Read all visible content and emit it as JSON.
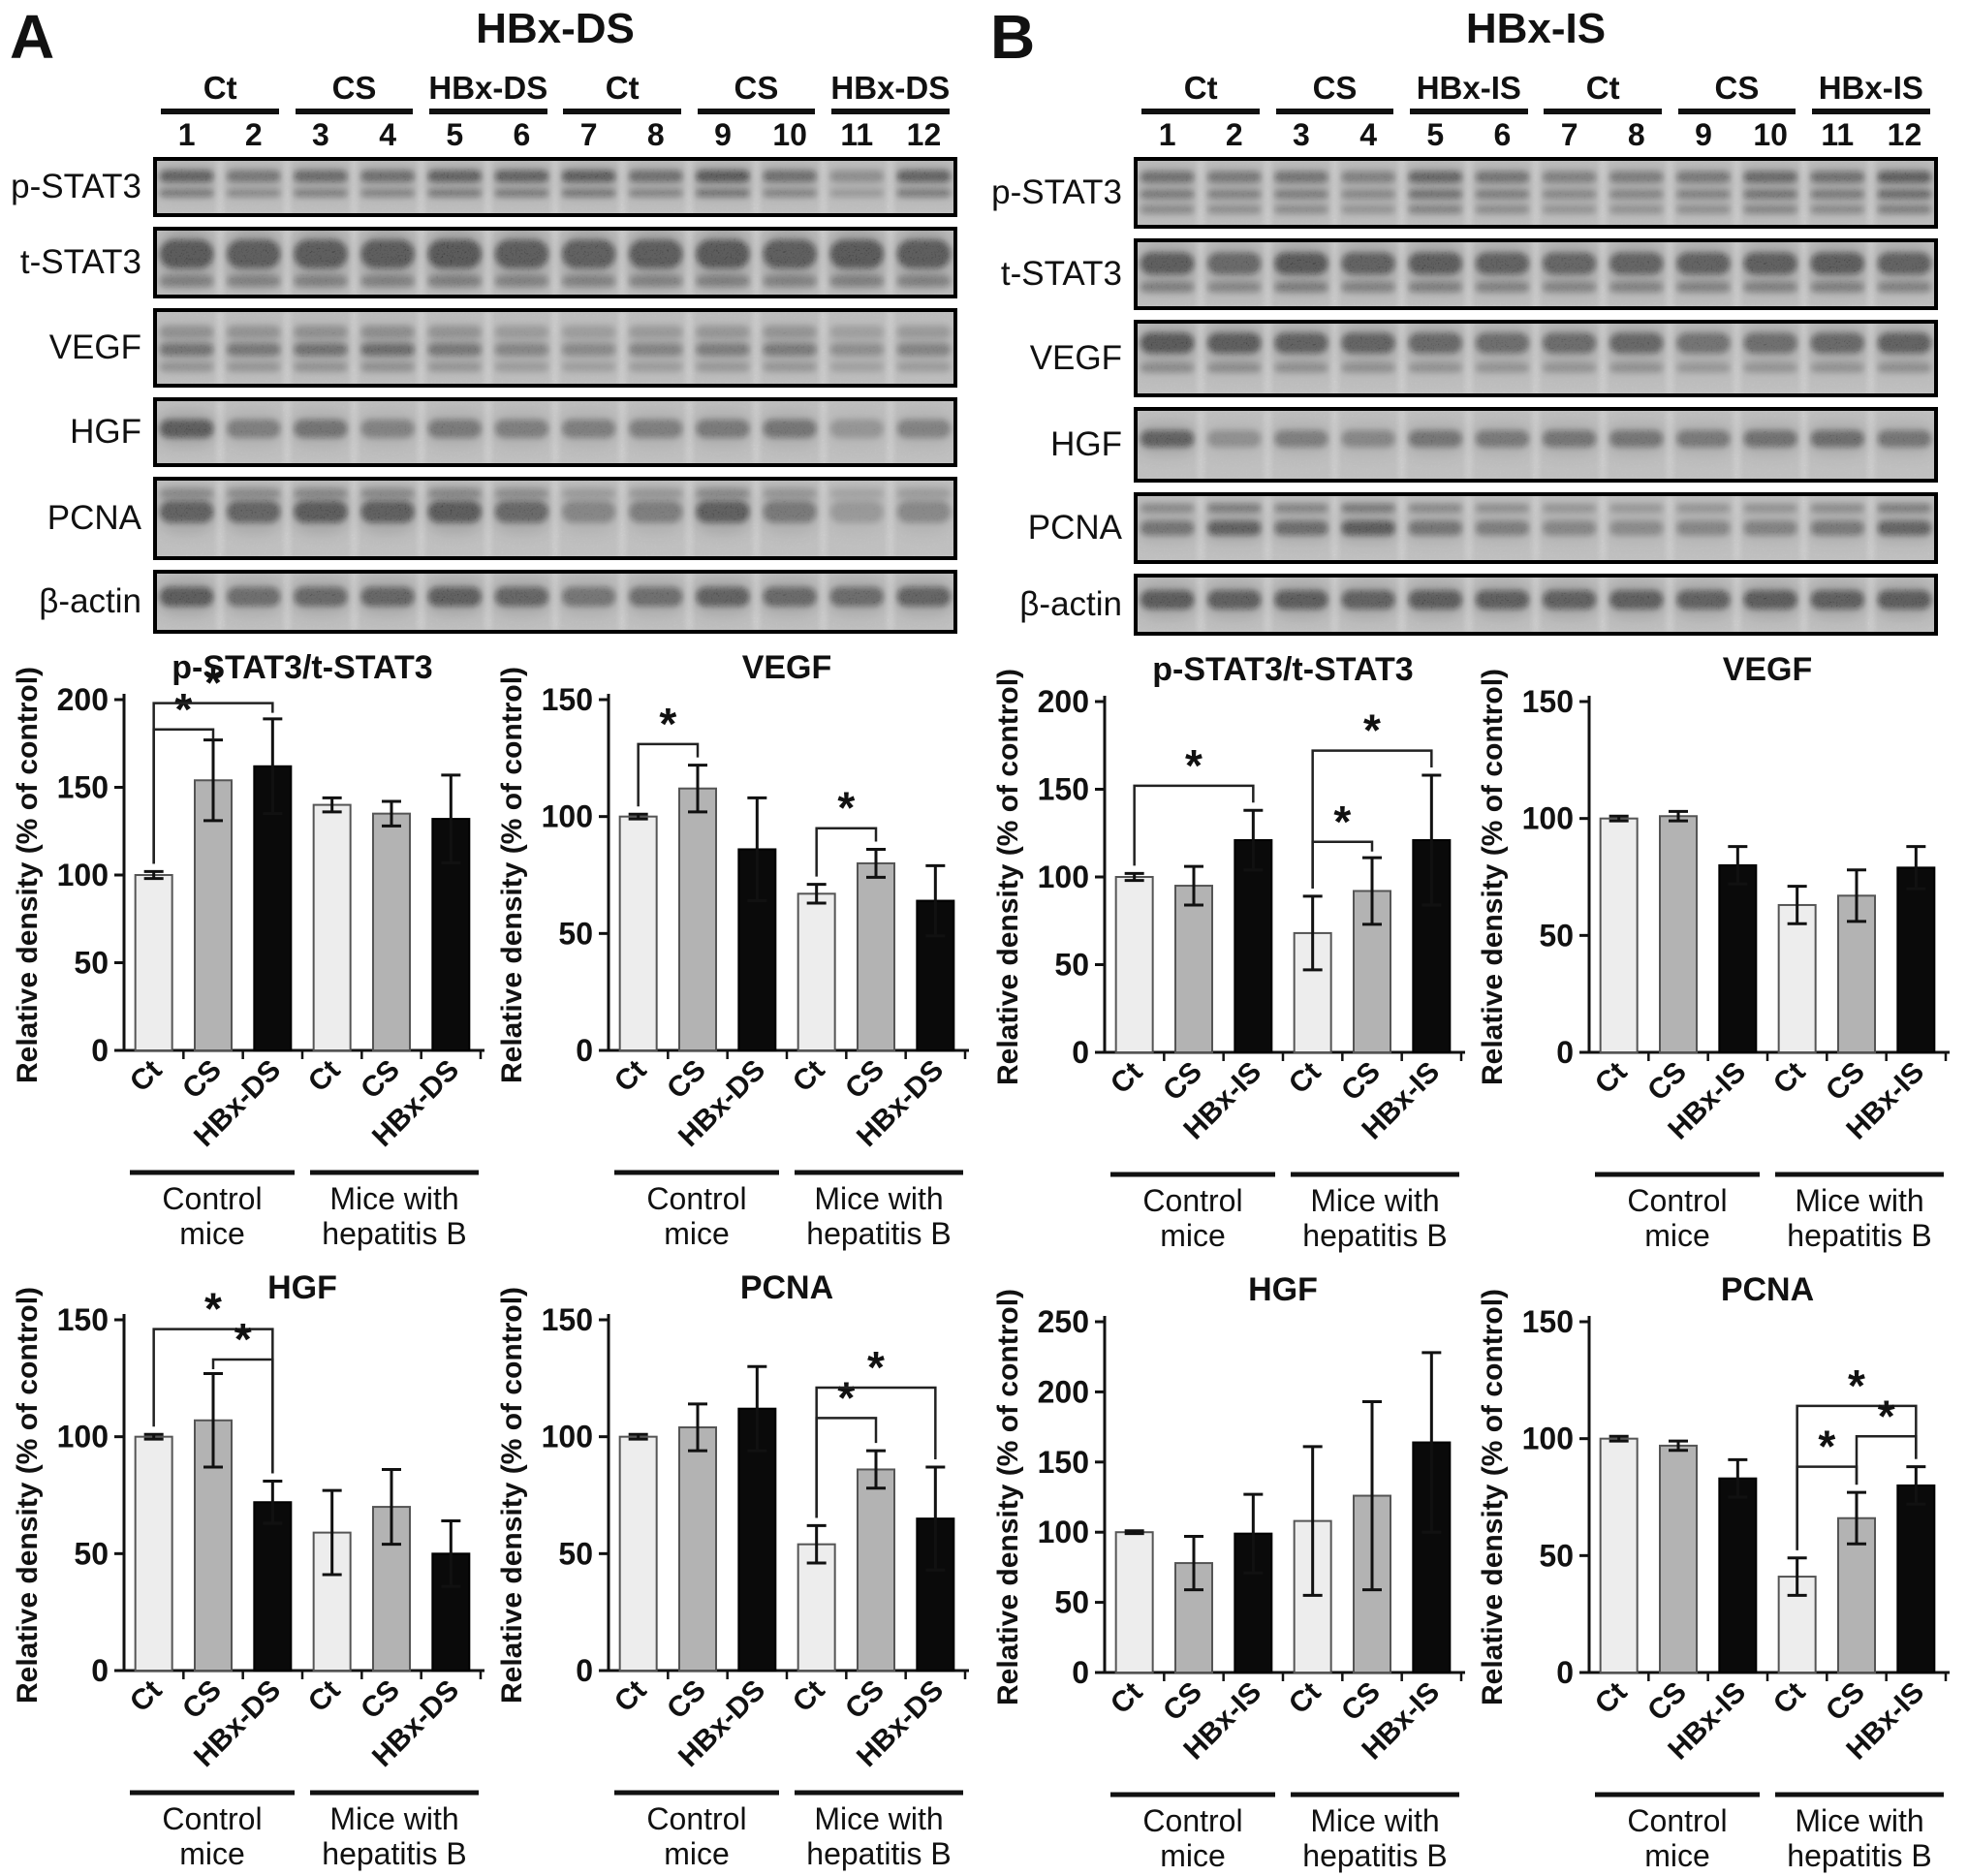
{
  "figure": {
    "panels": [
      {
        "key": "A",
        "panel_letter": "A",
        "blot": {
          "title": "HBx-DS",
          "group_labels": [
            "Ct",
            "CS",
            "HBx-DS",
            "Ct",
            "CS",
            "HBx-DS"
          ],
          "lane_numbers": [
            "1",
            "2",
            "3",
            "4",
            "5",
            "6",
            "7",
            "8",
            "9",
            "10",
            "11",
            "12"
          ],
          "rows": [
            {
              "label": "p-STAT3",
              "height": 62,
              "bands": [
                {
                  "y": 0.32,
                  "h": 0.2,
                  "k": 1.0
                },
                {
                  "y": 0.6,
                  "h": 0.13,
                  "k": 0.65
                }
              ],
              "intensities": [
                0.8,
                0.55,
                0.7,
                0.65,
                0.8,
                0.8,
                0.85,
                0.65,
                0.9,
                0.65,
                0.3,
                0.8
              ]
            },
            {
              "label": "t-STAT3",
              "height": 74,
              "bands": [
                {
                  "y": 0.38,
                  "h": 0.4,
                  "k": 1.0
                },
                {
                  "y": 0.76,
                  "h": 0.16,
                  "k": 0.45
                }
              ],
              "intensities": [
                0.95,
                0.9,
                0.92,
                0.92,
                0.98,
                0.9,
                0.88,
                0.9,
                0.95,
                0.9,
                0.95,
                0.92
              ]
            },
            {
              "label": "VEGF",
              "height": 82,
              "bands": [
                {
                  "y": 0.3,
                  "h": 0.16,
                  "k": 0.45
                },
                {
                  "y": 0.52,
                  "h": 0.16,
                  "k": 1.0
                },
                {
                  "y": 0.74,
                  "h": 0.12,
                  "k": 0.4
                }
              ],
              "intensities": [
                0.6,
                0.55,
                0.62,
                0.68,
                0.55,
                0.4,
                0.35,
                0.42,
                0.5,
                0.52,
                0.3,
                0.42
              ]
            },
            {
              "label": "HGF",
              "height": 72,
              "bands": [
                {
                  "y": 0.45,
                  "h": 0.26,
                  "k": 1.0
                }
              ],
              "intensities": [
                0.9,
                0.5,
                0.62,
                0.45,
                0.55,
                0.5,
                0.5,
                0.5,
                0.55,
                0.6,
                0.25,
                0.45
              ]
            },
            {
              "label": "PCNA",
              "height": 86,
              "bands": [
                {
                  "y": 0.2,
                  "h": 0.12,
                  "k": 0.35
                },
                {
                  "y": 0.42,
                  "h": 0.26,
                  "k": 1.0
                }
              ],
              "intensities": [
                0.85,
                0.8,
                0.92,
                0.88,
                0.92,
                0.75,
                0.4,
                0.5,
                0.88,
                0.55,
                0.2,
                0.38
              ]
            },
            {
              "label": "β-actin",
              "height": 66,
              "bands": [
                {
                  "y": 0.42,
                  "h": 0.3,
                  "k": 1.0
                }
              ],
              "intensities": [
                0.92,
                0.7,
                0.75,
                0.8,
                0.88,
                0.8,
                0.6,
                0.68,
                0.85,
                0.75,
                0.72,
                0.82
              ]
            }
          ]
        }
      },
      {
        "key": "B",
        "panel_letter": "B",
        "blot": {
          "title": "HBx-IS",
          "group_labels": [
            "Ct",
            "CS",
            "HBx-IS",
            "Ct",
            "CS",
            "HBx-IS"
          ],
          "lane_numbers": [
            "1",
            "2",
            "3",
            "4",
            "5",
            "6",
            "7",
            "8",
            "9",
            "10",
            "11",
            "12"
          ],
          "rows": [
            {
              "label": "p-STAT3",
              "height": 74,
              "bands": [
                {
                  "y": 0.28,
                  "h": 0.16,
                  "k": 0.9
                },
                {
                  "y": 0.52,
                  "h": 0.13,
                  "k": 0.7
                },
                {
                  "y": 0.73,
                  "h": 0.12,
                  "k": 0.5
                }
              ],
              "intensities": [
                0.7,
                0.6,
                0.65,
                0.5,
                0.85,
                0.65,
                0.5,
                0.55,
                0.6,
                0.8,
                0.7,
                0.95
              ]
            },
            {
              "label": "t-STAT3",
              "height": 74,
              "bands": [
                {
                  "y": 0.35,
                  "h": 0.3,
                  "k": 1.0
                },
                {
                  "y": 0.68,
                  "h": 0.14,
                  "k": 0.5
                }
              ],
              "intensities": [
                0.9,
                0.75,
                0.95,
                0.85,
                0.9,
                0.85,
                0.8,
                0.82,
                0.85,
                0.88,
                0.9,
                0.85
              ]
            },
            {
              "label": "VEGF",
              "height": 80,
              "bands": [
                {
                  "y": 0.3,
                  "h": 0.26,
                  "k": 1.0
                },
                {
                  "y": 0.62,
                  "h": 0.12,
                  "k": 0.35
                }
              ],
              "intensities": [
                0.95,
                0.9,
                0.85,
                0.82,
                0.75,
                0.7,
                0.72,
                0.78,
                0.62,
                0.68,
                0.75,
                0.85
              ]
            },
            {
              "label": "HGF",
              "height": 78,
              "bands": [
                {
                  "y": 0.42,
                  "h": 0.22,
                  "k": 1.0
                }
              ],
              "intensities": [
                0.85,
                0.3,
                0.5,
                0.4,
                0.6,
                0.55,
                0.6,
                0.6,
                0.55,
                0.65,
                0.7,
                0.6
              ]
            },
            {
              "label": "PCNA",
              "height": 74,
              "bands": [
                {
                  "y": 0.22,
                  "h": 0.12,
                  "k": 0.6
                },
                {
                  "y": 0.5,
                  "h": 0.2,
                  "k": 1.0
                }
              ],
              "intensities": [
                0.6,
                0.85,
                0.7,
                0.9,
                0.6,
                0.5,
                0.4,
                0.35,
                0.4,
                0.45,
                0.55,
                0.8
              ]
            },
            {
              "label": "β-actin",
              "height": 64,
              "bands": [
                {
                  "y": 0.42,
                  "h": 0.3,
                  "k": 1.0
                }
              ],
              "intensities": [
                0.92,
                0.88,
                0.9,
                0.85,
                0.9,
                0.88,
                0.86,
                0.88,
                0.85,
                0.9,
                0.88,
                0.9
              ]
            }
          ]
        }
      }
    ]
  },
  "chart_data": [
    {
      "panel": "A",
      "type": "bar",
      "title": "p-STAT3/t-STAT3",
      "ylabel": "Relative density (% of control)",
      "ylim": [
        0,
        200
      ],
      "yticks": [
        0,
        50,
        100,
        150,
        200
      ],
      "grid": false,
      "legend": "none",
      "categories": [
        "Ct",
        "CS",
        "HBx-DS",
        "Ct",
        "CS",
        "HBx-DS"
      ],
      "values": [
        100,
        154,
        162,
        140,
        135,
        132
      ],
      "errors": [
        2,
        23,
        27,
        4,
        7,
        25
      ],
      "bar_colors": [
        "#ededed",
        "#b3b3b3",
        "#0a0a0a"
      ],
      "group_labels": [
        [
          "Control",
          "mice"
        ],
        [
          "Mice with",
          "hepatitis B"
        ]
      ],
      "significance": [
        {
          "from": 0,
          "to": 1,
          "level": 183,
          "symbol": "*"
        },
        {
          "from": 0,
          "to": 2,
          "level": 198,
          "symbol": "*"
        }
      ]
    },
    {
      "panel": "A",
      "type": "bar",
      "title": "VEGF",
      "ylabel": "Relative density (% of control)",
      "ylim": [
        0,
        150
      ],
      "yticks": [
        0,
        50,
        100,
        150
      ],
      "grid": false,
      "legend": "none",
      "categories": [
        "Ct",
        "CS",
        "HBx-DS",
        "Ct",
        "CS",
        "HBx-DS"
      ],
      "values": [
        100,
        112,
        86,
        67,
        80,
        64
      ],
      "errors": [
        1,
        10,
        22,
        4,
        6,
        15
      ],
      "bar_colors": [
        "#ededed",
        "#b3b3b3",
        "#0a0a0a"
      ],
      "group_labels": [
        [
          "Control",
          "mice"
        ],
        [
          "Mice with",
          "hepatitis B"
        ]
      ],
      "significance": [
        {
          "from": 0,
          "to": 1,
          "level": 131,
          "symbol": "*"
        },
        {
          "from": 3,
          "to": 4,
          "level": 95,
          "symbol": "*"
        }
      ]
    },
    {
      "panel": "A",
      "type": "bar",
      "title": "HGF",
      "ylabel": "Relative density (% of control)",
      "ylim": [
        0,
        150
      ],
      "yticks": [
        0,
        50,
        100,
        150
      ],
      "grid": false,
      "legend": "none",
      "categories": [
        "Ct",
        "CS",
        "HBx-DS",
        "Ct",
        "CS",
        "HBx-DS"
      ],
      "values": [
        100,
        107,
        72,
        59,
        70,
        50
      ],
      "errors": [
        1,
        20,
        9,
        18,
        16,
        14
      ],
      "bar_colors": [
        "#ededed",
        "#b3b3b3",
        "#0a0a0a"
      ],
      "group_labels": [
        [
          "Control",
          "mice"
        ],
        [
          "Mice with",
          "hepatitis B"
        ]
      ],
      "significance": [
        {
          "from": 0,
          "to": 2,
          "level": 146,
          "symbol": "*"
        },
        {
          "from": 1,
          "to": 2,
          "level": 133,
          "symbol": "*"
        }
      ]
    },
    {
      "panel": "A",
      "type": "bar",
      "title": "PCNA",
      "ylabel": "Relative density (% of control)",
      "ylim": [
        0,
        150
      ],
      "yticks": [
        0,
        50,
        100,
        150
      ],
      "grid": false,
      "legend": "none",
      "categories": [
        "Ct",
        "CS",
        "HBx-DS",
        "Ct",
        "CS",
        "HBx-DS"
      ],
      "values": [
        100,
        104,
        112,
        54,
        86,
        65
      ],
      "errors": [
        1,
        10,
        18,
        8,
        8,
        22
      ],
      "bar_colors": [
        "#ededed",
        "#b3b3b3",
        "#0a0a0a"
      ],
      "group_labels": [
        [
          "Control",
          "mice"
        ],
        [
          "Mice with",
          "hepatitis B"
        ]
      ],
      "significance": [
        {
          "from": 3,
          "to": 4,
          "level": 108,
          "symbol": "*"
        },
        {
          "from": 3,
          "to": 5,
          "level": 121,
          "symbol": "*"
        }
      ]
    },
    {
      "panel": "B",
      "type": "bar",
      "title": "p-STAT3/t-STAT3",
      "ylabel": "Relative density (% of control)",
      "ylim": [
        0,
        200
      ],
      "yticks": [
        0,
        50,
        100,
        150,
        200
      ],
      "grid": false,
      "legend": "none",
      "categories": [
        "Ct",
        "CS",
        "HBx-IS",
        "Ct",
        "CS",
        "HBx-IS"
      ],
      "values": [
        100,
        95,
        121,
        68,
        92,
        121
      ],
      "errors": [
        2,
        11,
        17,
        21,
        19,
        37
      ],
      "bar_colors": [
        "#ededed",
        "#b3b3b3",
        "#0a0a0a"
      ],
      "group_labels": [
        [
          "Control",
          "mice"
        ],
        [
          "Mice with",
          "hepatitis B"
        ]
      ],
      "significance": [
        {
          "from": 0,
          "to": 2,
          "level": 152,
          "symbol": "*"
        },
        {
          "from": 3,
          "to": 4,
          "level": 120,
          "symbol": "*"
        },
        {
          "from": 3,
          "to": 5,
          "level": 172,
          "symbol": "*"
        }
      ]
    },
    {
      "panel": "B",
      "type": "bar",
      "title": "VEGF",
      "ylabel": "Relative density (% of control)",
      "ylim": [
        0,
        150
      ],
      "yticks": [
        0,
        50,
        100,
        150
      ],
      "grid": false,
      "legend": "none",
      "categories": [
        "Ct",
        "CS",
        "HBx-IS",
        "Ct",
        "CS",
        "HBx-IS"
      ],
      "values": [
        100,
        101,
        80,
        63,
        67,
        79
      ],
      "errors": [
        1,
        2,
        8,
        8,
        11,
        9
      ],
      "bar_colors": [
        "#ededed",
        "#b3b3b3",
        "#0a0a0a"
      ],
      "group_labels": [
        [
          "Control",
          "mice"
        ],
        [
          "Mice with",
          "hepatitis B"
        ]
      ],
      "significance": []
    },
    {
      "panel": "B",
      "type": "bar",
      "title": "HGF",
      "ylabel": "Relative density (% of control)",
      "ylim": [
        0,
        250
      ],
      "yticks": [
        0,
        50,
        100,
        150,
        200,
        250
      ],
      "grid": false,
      "legend": "none",
      "categories": [
        "Ct",
        "CS",
        "HBx-IS",
        "Ct",
        "CS",
        "HBx-IS"
      ],
      "values": [
        100,
        78,
        99,
        108,
        126,
        164
      ],
      "errors": [
        1,
        19,
        28,
        53,
        67,
        64
      ],
      "bar_colors": [
        "#ededed",
        "#b3b3b3",
        "#0a0a0a"
      ],
      "group_labels": [
        [
          "Control",
          "mice"
        ],
        [
          "Mice with",
          "hepatitis B"
        ]
      ],
      "significance": []
    },
    {
      "panel": "B",
      "type": "bar",
      "title": "PCNA",
      "ylabel": "Relative density (% of control)",
      "ylim": [
        0,
        150
      ],
      "yticks": [
        0,
        50,
        100,
        150
      ],
      "grid": false,
      "legend": "none",
      "categories": [
        "Ct",
        "CS",
        "HBx-IS",
        "Ct",
        "CS",
        "HBx-IS"
      ],
      "values": [
        100,
        97,
        83,
        41,
        66,
        80
      ],
      "errors": [
        1,
        2,
        8,
        8,
        11,
        8
      ],
      "bar_colors": [
        "#ededed",
        "#b3b3b3",
        "#0a0a0a"
      ],
      "group_labels": [
        [
          "Control",
          "mice"
        ],
        [
          "Mice with",
          "hepatitis B"
        ]
      ],
      "significance": [
        {
          "from": 3,
          "to": 4,
          "level": 88,
          "symbol": "*"
        },
        {
          "from": 3,
          "to": 5,
          "level": 114,
          "symbol": "*"
        },
        {
          "from": 4,
          "to": 5,
          "level": 101,
          "symbol": "*"
        }
      ]
    }
  ]
}
